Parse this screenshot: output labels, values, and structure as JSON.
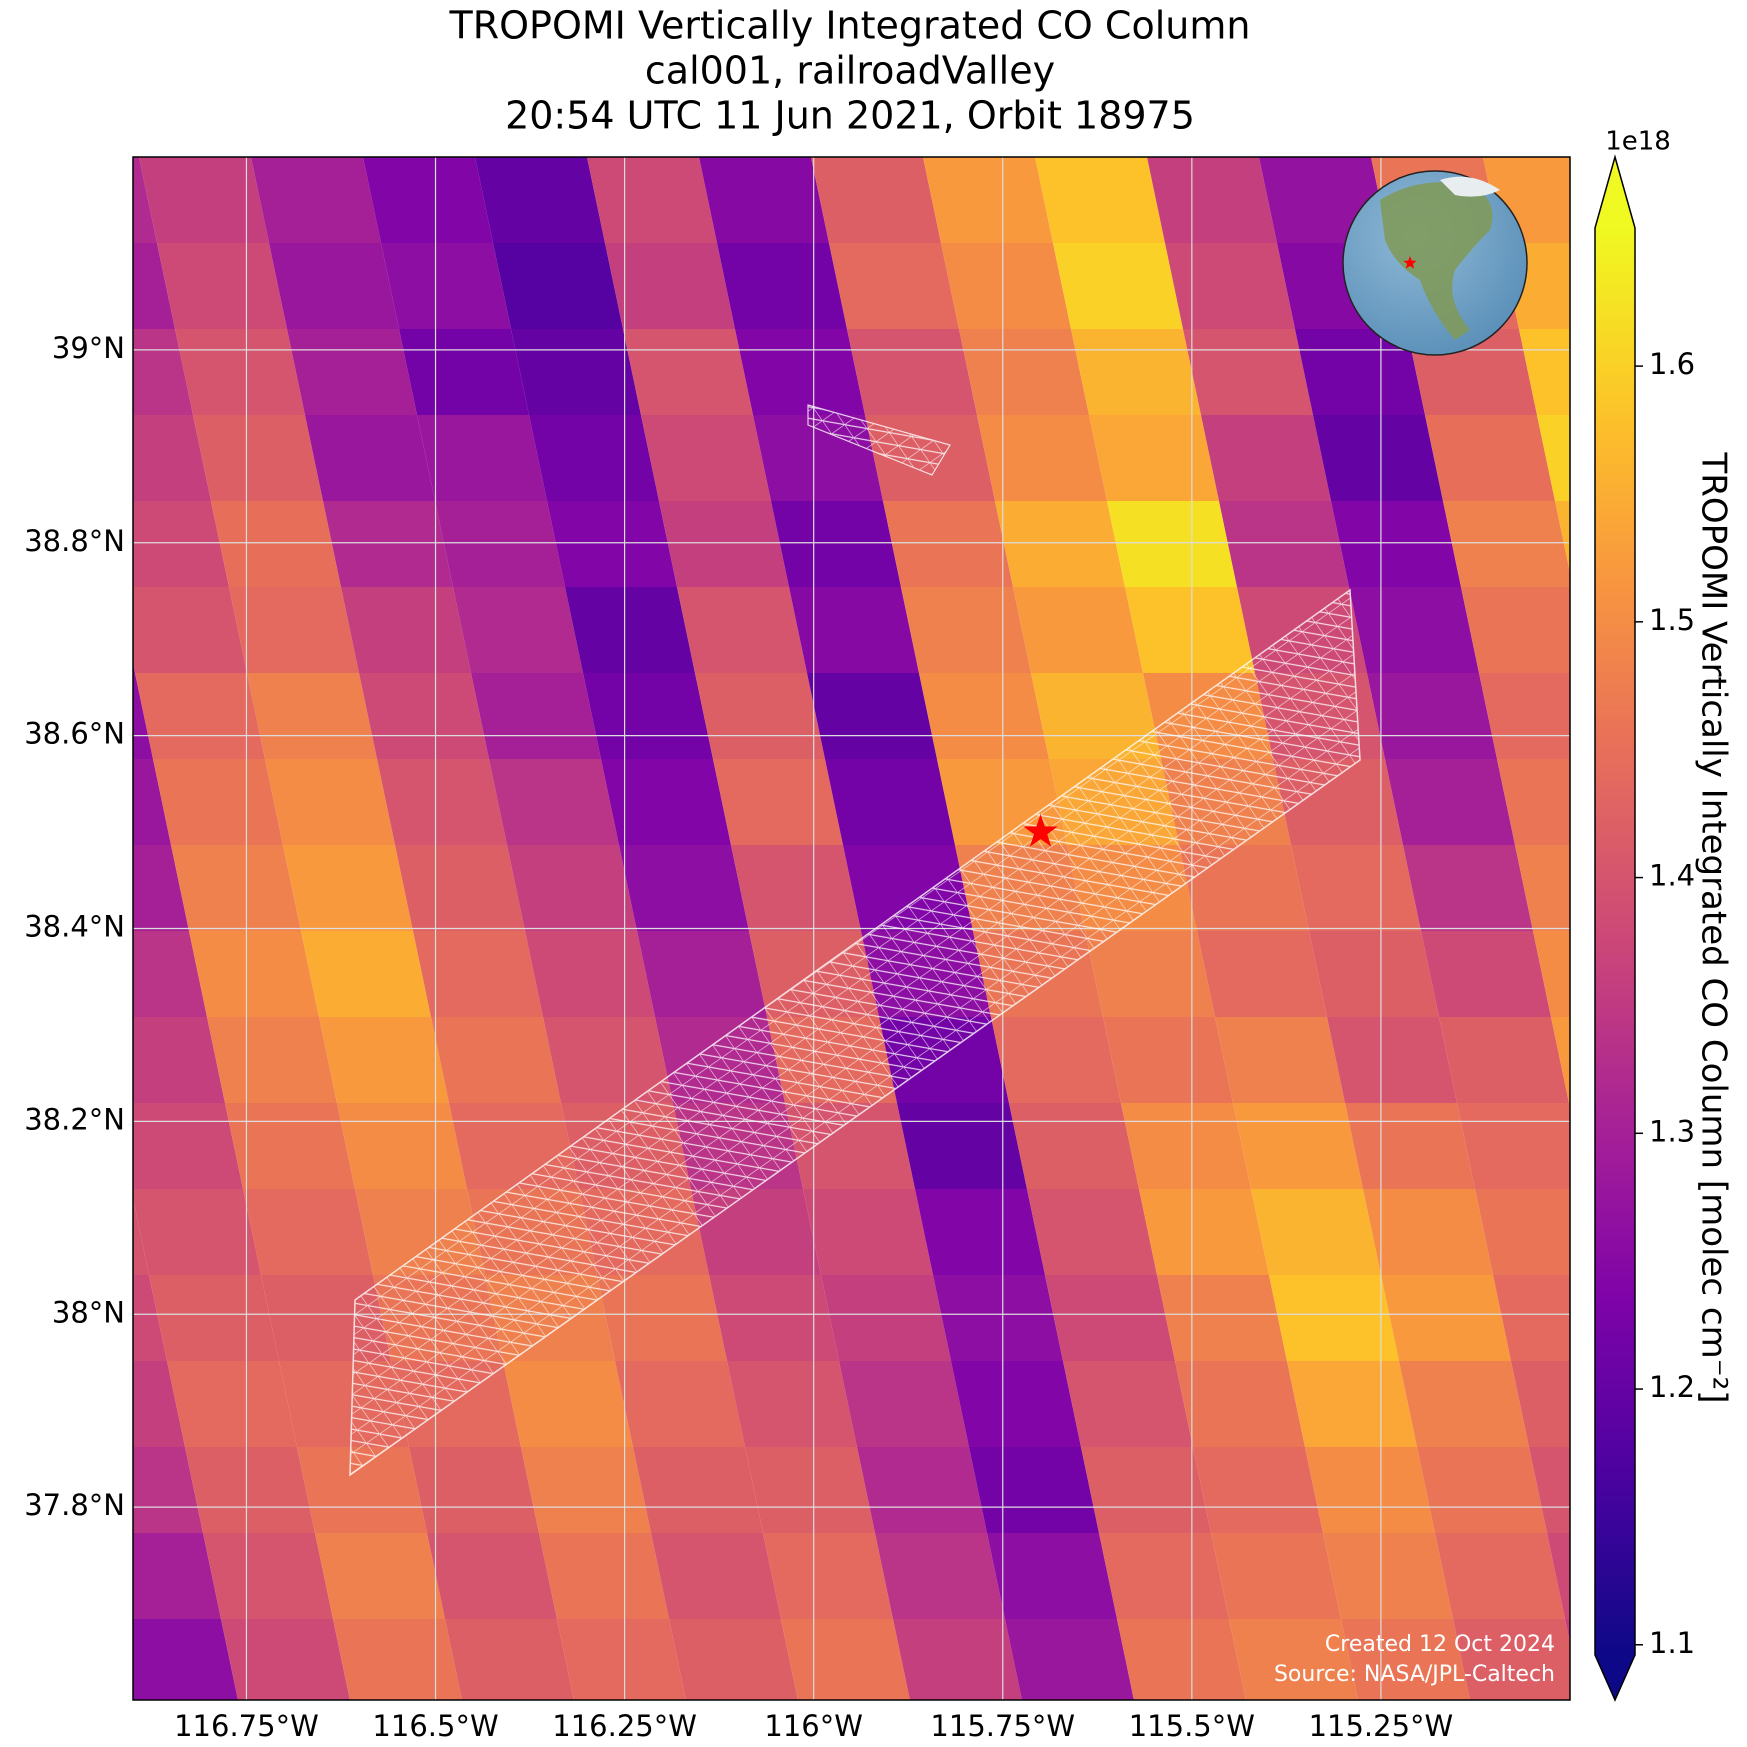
{
  "chart_data": {
    "type": "map",
    "title": [
      "TROPOMI Vertically Integrated CO Column",
      "cal001, railroadValley",
      "20:54 UTC 11 Jun 2021, Orbit 18975"
    ],
    "xlim": [
      -116.9,
      -115.0
    ],
    "ylim": [
      37.6,
      39.2
    ],
    "xticks": [
      {
        "value": -116.75,
        "label": "116.75°W"
      },
      {
        "value": -116.5,
        "label": "116.5°W"
      },
      {
        "value": -116.25,
        "label": "116.25°W"
      },
      {
        "value": -116.0,
        "label": "116°W"
      },
      {
        "value": -115.75,
        "label": "115.75°W"
      },
      {
        "value": -115.5,
        "label": "115.5°W"
      },
      {
        "value": -115.25,
        "label": "115.25°W"
      }
    ],
    "yticks": [
      {
        "value": 37.8,
        "label": "37.8°N"
      },
      {
        "value": 38.0,
        "label": "38°N"
      },
      {
        "value": 38.2,
        "label": "38.2°N"
      },
      {
        "value": 38.4,
        "label": "38.4°N"
      },
      {
        "value": 38.6,
        "label": "38.6°N"
      },
      {
        "value": 38.8,
        "label": "38.8°N"
      },
      {
        "value": 39.0,
        "label": "39°N"
      }
    ],
    "grid": true,
    "site": {
      "lon": -115.7,
      "lat": 38.5,
      "color": "#ff0000"
    },
    "colorbar": {
      "label": "TROPOMI Vertically Integrated CO Column [molec cm⁻²]",
      "offset_label": "1e18",
      "colormap": "plasma",
      "clim": [
        1.096,
        1.654
      ],
      "ticks": [
        1.1,
        1.2,
        1.3,
        1.4,
        1.5,
        1.6
      ]
    },
    "annotations": [
      "Created 12 Oct 2024",
      "Source: NASA/JPL-Caltech"
    ],
    "co_grid": [
      [
        1.3,
        1.27,
        1.32,
        1.36,
        1.3,
        1.24,
        1.2,
        1.38,
        1.25,
        1.42,
        1.52,
        1.58,
        1.36,
        1.27,
        1.46,
        1.52
      ],
      [
        1.32,
        1.25,
        1.3,
        1.38,
        1.28,
        1.26,
        1.18,
        1.36,
        1.22,
        1.44,
        1.5,
        1.6,
        1.38,
        1.25,
        1.44,
        1.55
      ],
      [
        1.28,
        1.22,
        1.34,
        1.4,
        1.3,
        1.22,
        1.2,
        1.4,
        1.24,
        1.4,
        1.48,
        1.56,
        1.4,
        1.22,
        1.42,
        1.58
      ],
      [
        1.34,
        1.18,
        1.36,
        1.42,
        1.28,
        1.28,
        1.22,
        1.38,
        1.26,
        1.42,
        1.5,
        1.54,
        1.36,
        1.2,
        1.45,
        1.6
      ],
      [
        1.3,
        1.2,
        1.38,
        1.45,
        1.32,
        1.3,
        1.24,
        1.36,
        1.22,
        1.46,
        1.55,
        1.62,
        1.34,
        1.24,
        1.48,
        1.56
      ],
      [
        1.36,
        1.24,
        1.4,
        1.44,
        1.36,
        1.32,
        1.2,
        1.4,
        1.25,
        1.48,
        1.52,
        1.58,
        1.38,
        1.26,
        1.46,
        1.52
      ],
      [
        1.38,
        1.26,
        1.44,
        1.48,
        1.38,
        1.3,
        1.22,
        1.42,
        1.2,
        1.5,
        1.56,
        1.5,
        1.4,
        1.28,
        1.44,
        1.5
      ],
      [
        1.42,
        1.28,
        1.46,
        1.5,
        1.4,
        1.34,
        1.24,
        1.44,
        1.22,
        1.52,
        1.54,
        1.48,
        1.42,
        1.3,
        1.46,
        1.48
      ],
      [
        1.4,
        1.3,
        1.48,
        1.52,
        1.42,
        1.36,
        1.26,
        1.4,
        1.24,
        1.48,
        1.5,
        1.46,
        1.44,
        1.34,
        1.48,
        1.5
      ],
      [
        1.44,
        1.34,
        1.5,
        1.55,
        1.44,
        1.38,
        1.3,
        1.42,
        1.26,
        1.46,
        1.48,
        1.44,
        1.42,
        1.38,
        1.5,
        1.46
      ],
      [
        1.46,
        1.36,
        1.48,
        1.52,
        1.46,
        1.4,
        1.32,
        1.44,
        1.22,
        1.44,
        1.46,
        1.48,
        1.4,
        1.42,
        1.52,
        1.44
      ],
      [
        1.42,
        1.38,
        1.46,
        1.5,
        1.44,
        1.42,
        1.34,
        1.4,
        1.2,
        1.42,
        1.5,
        1.52,
        1.46,
        1.44,
        1.54,
        1.42
      ],
      [
        1.4,
        1.4,
        1.44,
        1.48,
        1.46,
        1.44,
        1.36,
        1.38,
        1.24,
        1.4,
        1.52,
        1.56,
        1.5,
        1.46,
        1.56,
        1.4
      ],
      [
        1.38,
        1.42,
        1.42,
        1.46,
        1.48,
        1.46,
        1.38,
        1.36,
        1.26,
        1.38,
        1.48,
        1.58,
        1.52,
        1.44,
        1.6,
        1.38
      ],
      [
        1.36,
        1.44,
        1.44,
        1.44,
        1.5,
        1.44,
        1.4,
        1.34,
        1.24,
        1.4,
        1.46,
        1.54,
        1.48,
        1.42,
        1.58,
        1.36
      ],
      [
        1.34,
        1.42,
        1.46,
        1.42,
        1.48,
        1.42,
        1.42,
        1.32,
        1.22,
        1.42,
        1.44,
        1.5,
        1.46,
        1.4,
        1.56,
        1.34
      ],
      [
        1.3,
        1.4,
        1.48,
        1.4,
        1.46,
        1.4,
        1.44,
        1.34,
        1.26,
        1.44,
        1.46,
        1.48,
        1.44,
        1.38,
        1.54,
        1.32
      ],
      [
        1.26,
        1.38,
        1.46,
        1.42,
        1.44,
        1.42,
        1.46,
        1.36,
        1.28,
        1.46,
        1.48,
        1.46,
        1.42,
        1.36,
        1.52,
        1.3
      ]
    ]
  }
}
